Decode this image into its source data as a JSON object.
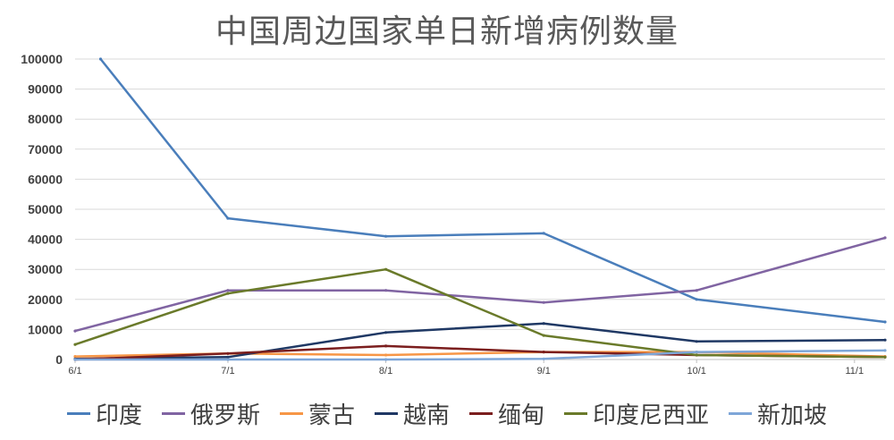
{
  "title": "中国周边国家单日新增病例数量",
  "chart_data": {
    "type": "line",
    "title": "中国周边国家单日新增病例数量",
    "xlabel": "",
    "ylabel": "",
    "ylim": [
      0,
      100000
    ],
    "yticks": [
      "0",
      "10000",
      "20000",
      "30000",
      "40000",
      "50000",
      "60000",
      "70000",
      "80000",
      "90000",
      "100000"
    ],
    "xlim": [
      "2021-06-01",
      "2021-11-07"
    ],
    "xticks": [
      {
        "date": "2021-06-01",
        "label": "6/1"
      },
      {
        "date": "2021-07-01",
        "label": "7/1"
      },
      {
        "date": "2021-08-01",
        "label": "8/1"
      },
      {
        "date": "2021-09-01",
        "label": "9/1"
      },
      {
        "date": "2021-10-01",
        "label": "10/1"
      },
      {
        "date": "2021-11-01",
        "label": "11/1"
      }
    ],
    "grid": true,
    "legend_position": "bottom",
    "series": [
      {
        "name": "印度",
        "color": "#4a7ebb",
        "points": [
          [
            "2021-06-06",
            100000
          ],
          [
            "2021-07-01",
            47000
          ],
          [
            "2021-08-01",
            41000
          ],
          [
            "2021-09-01",
            42000
          ],
          [
            "2021-10-01",
            20000
          ],
          [
            "2021-11-07",
            12500
          ]
        ]
      },
      {
        "name": "俄罗斯",
        "color": "#8064a2",
        "points": [
          [
            "2021-06-01",
            9500
          ],
          [
            "2021-07-01",
            23000
          ],
          [
            "2021-08-01",
            23000
          ],
          [
            "2021-09-01",
            19000
          ],
          [
            "2021-10-01",
            23000
          ],
          [
            "2021-11-07",
            40500
          ]
        ]
      },
      {
        "name": "蒙古",
        "color": "#f79646",
        "points": [
          [
            "2021-06-01",
            1000
          ],
          [
            "2021-07-01",
            2000
          ],
          [
            "2021-08-01",
            1500
          ],
          [
            "2021-09-01",
            2500
          ],
          [
            "2021-10-01",
            2500
          ],
          [
            "2021-11-07",
            1000
          ]
        ]
      },
      {
        "name": "越南",
        "color": "#1f3864",
        "points": [
          [
            "2021-06-01",
            200
          ],
          [
            "2021-07-01",
            800
          ],
          [
            "2021-08-01",
            9000
          ],
          [
            "2021-09-01",
            12000
          ],
          [
            "2021-10-01",
            6000
          ],
          [
            "2021-11-07",
            6500
          ]
        ]
      },
      {
        "name": "缅甸",
        "color": "#7b1e1e",
        "points": [
          [
            "2021-06-01",
            0
          ],
          [
            "2021-07-01",
            2000
          ],
          [
            "2021-08-01",
            4500
          ],
          [
            "2021-09-01",
            2500
          ],
          [
            "2021-10-01",
            1500
          ],
          [
            "2021-11-07",
            800
          ]
        ]
      },
      {
        "name": "印度尼西亚",
        "color": "#6a7a2a",
        "points": [
          [
            "2021-06-01",
            5000
          ],
          [
            "2021-07-01",
            22000
          ],
          [
            "2021-08-01",
            30000
          ],
          [
            "2021-09-01",
            8000
          ],
          [
            "2021-10-01",
            1500
          ],
          [
            "2021-11-07",
            800
          ]
        ]
      },
      {
        "name": "新加坡",
        "color": "#7ea6d8",
        "points": [
          [
            "2021-06-01",
            0
          ],
          [
            "2021-07-01",
            0
          ],
          [
            "2021-08-01",
            0
          ],
          [
            "2021-09-01",
            200
          ],
          [
            "2021-10-01",
            2500
          ],
          [
            "2021-11-07",
            3000
          ]
        ]
      }
    ]
  }
}
